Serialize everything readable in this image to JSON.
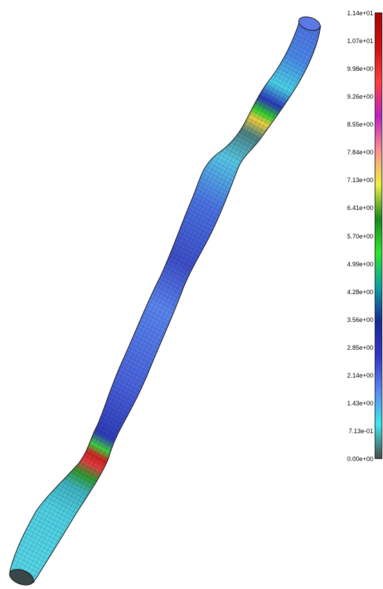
{
  "legend": {
    "ticks": [
      "1.14e+01",
      "1.07e+01",
      "9.98e+00",
      "9.26e+00",
      "8.55e+00",
      "7.84e+00",
      "7.13e+00",
      "6.41e+00",
      "5.70e+00",
      "4.99e+00",
      "4.28e+00",
      "3.56e+00",
      "2.85e+00",
      "2.14e+00",
      "1.43e+00",
      "7.13e-01",
      "0.00e+00"
    ],
    "range": [
      0.0,
      11.4
    ],
    "colors": {
      "stops": [
        "#4a4a4a",
        "#3fe8ee",
        "#5a86f0",
        "#3434c8",
        "#1a2a96",
        "#0aa0a0",
        "#2ee62e",
        "#1a8a1a",
        "#f0f040",
        "#ff9090",
        "#c020c0",
        "#ff4040",
        "#d01010",
        "#b00000"
      ]
    }
  },
  "model": {
    "description_colors": {
      "cyan": "#4fd8e6",
      "blue": "#4a6fe0",
      "deep_blue": "#2f3fbe",
      "hot": "#e02020"
    }
  }
}
